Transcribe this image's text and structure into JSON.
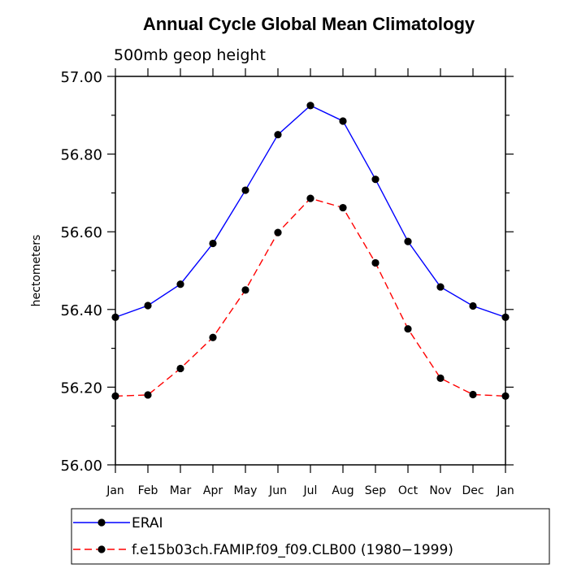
{
  "chart_data": {
    "type": "line",
    "title": "Annual Cycle Global Mean Climatology",
    "subtitle": "500mb geop height",
    "ylabel": "hectometers",
    "xlabel": "",
    "categories": [
      "Jan",
      "Feb",
      "Mar",
      "Apr",
      "May",
      "Jun",
      "Jul",
      "Aug",
      "Sep",
      "Oct",
      "Nov",
      "Dec",
      "Jan"
    ],
    "ylim": [
      56.0,
      57.0
    ],
    "yticks": [
      "56.00",
      "56.20",
      "56.40",
      "56.60",
      "56.80",
      "57.00"
    ],
    "grid": false,
    "legend_position": "bottom",
    "series": [
      {
        "name": "ERAI",
        "color": "#0000ff",
        "line_style": "solid",
        "marker": "filled-circle",
        "values": [
          56.38,
          56.41,
          56.465,
          56.57,
          56.707,
          56.85,
          56.925,
          56.885,
          56.735,
          56.575,
          56.458,
          56.409,
          56.38
        ]
      },
      {
        "name": "f.e15b03ch.FAMIP.f09_f09.CLB00 (1980−1999)",
        "color": "#ff0000",
        "line_style": "dashed",
        "marker": "filled-circle",
        "values": [
          56.177,
          56.18,
          56.248,
          56.328,
          56.45,
          56.598,
          56.686,
          56.662,
          56.52,
          56.35,
          56.223,
          56.181,
          56.177
        ]
      }
    ]
  }
}
